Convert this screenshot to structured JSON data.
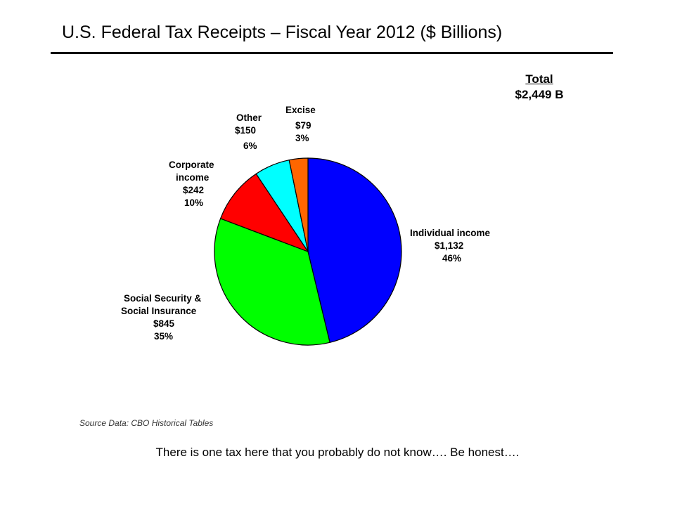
{
  "chart_data": {
    "type": "pie",
    "title": "U.S. Federal Tax Receipts – Fiscal Year 2012 ($ Billions)",
    "total_label": "Total",
    "total_value": "$2,449 B",
    "slices": [
      {
        "name_lines": [
          "Individual income"
        ],
        "value": 1132,
        "value_label": "$1,132",
        "percent_label": "46%",
        "color": "#0000ff"
      },
      {
        "name_lines": [
          "Social Security &",
          "Social Insurance"
        ],
        "value": 845,
        "value_label": "$845",
        "percent_label": "35%",
        "color": "#00ff00"
      },
      {
        "name_lines": [
          "Corporate",
          "income"
        ],
        "value": 242,
        "value_label": "$242",
        "percent_label": "10%",
        "color": "#ff0000"
      },
      {
        "name_lines": [
          "Other"
        ],
        "value": 150,
        "value_label": "$150",
        "percent_label": "6%",
        "color": "#00ffff"
      },
      {
        "name_lines": [
          "Excise"
        ],
        "value": 79,
        "value_label": "$79",
        "percent_label": "3%",
        "color": "#ff6600"
      }
    ]
  },
  "source": "Source Data: CBO Historical Tables",
  "caption": "There is one tax here that you probably do not know…. Be honest…."
}
